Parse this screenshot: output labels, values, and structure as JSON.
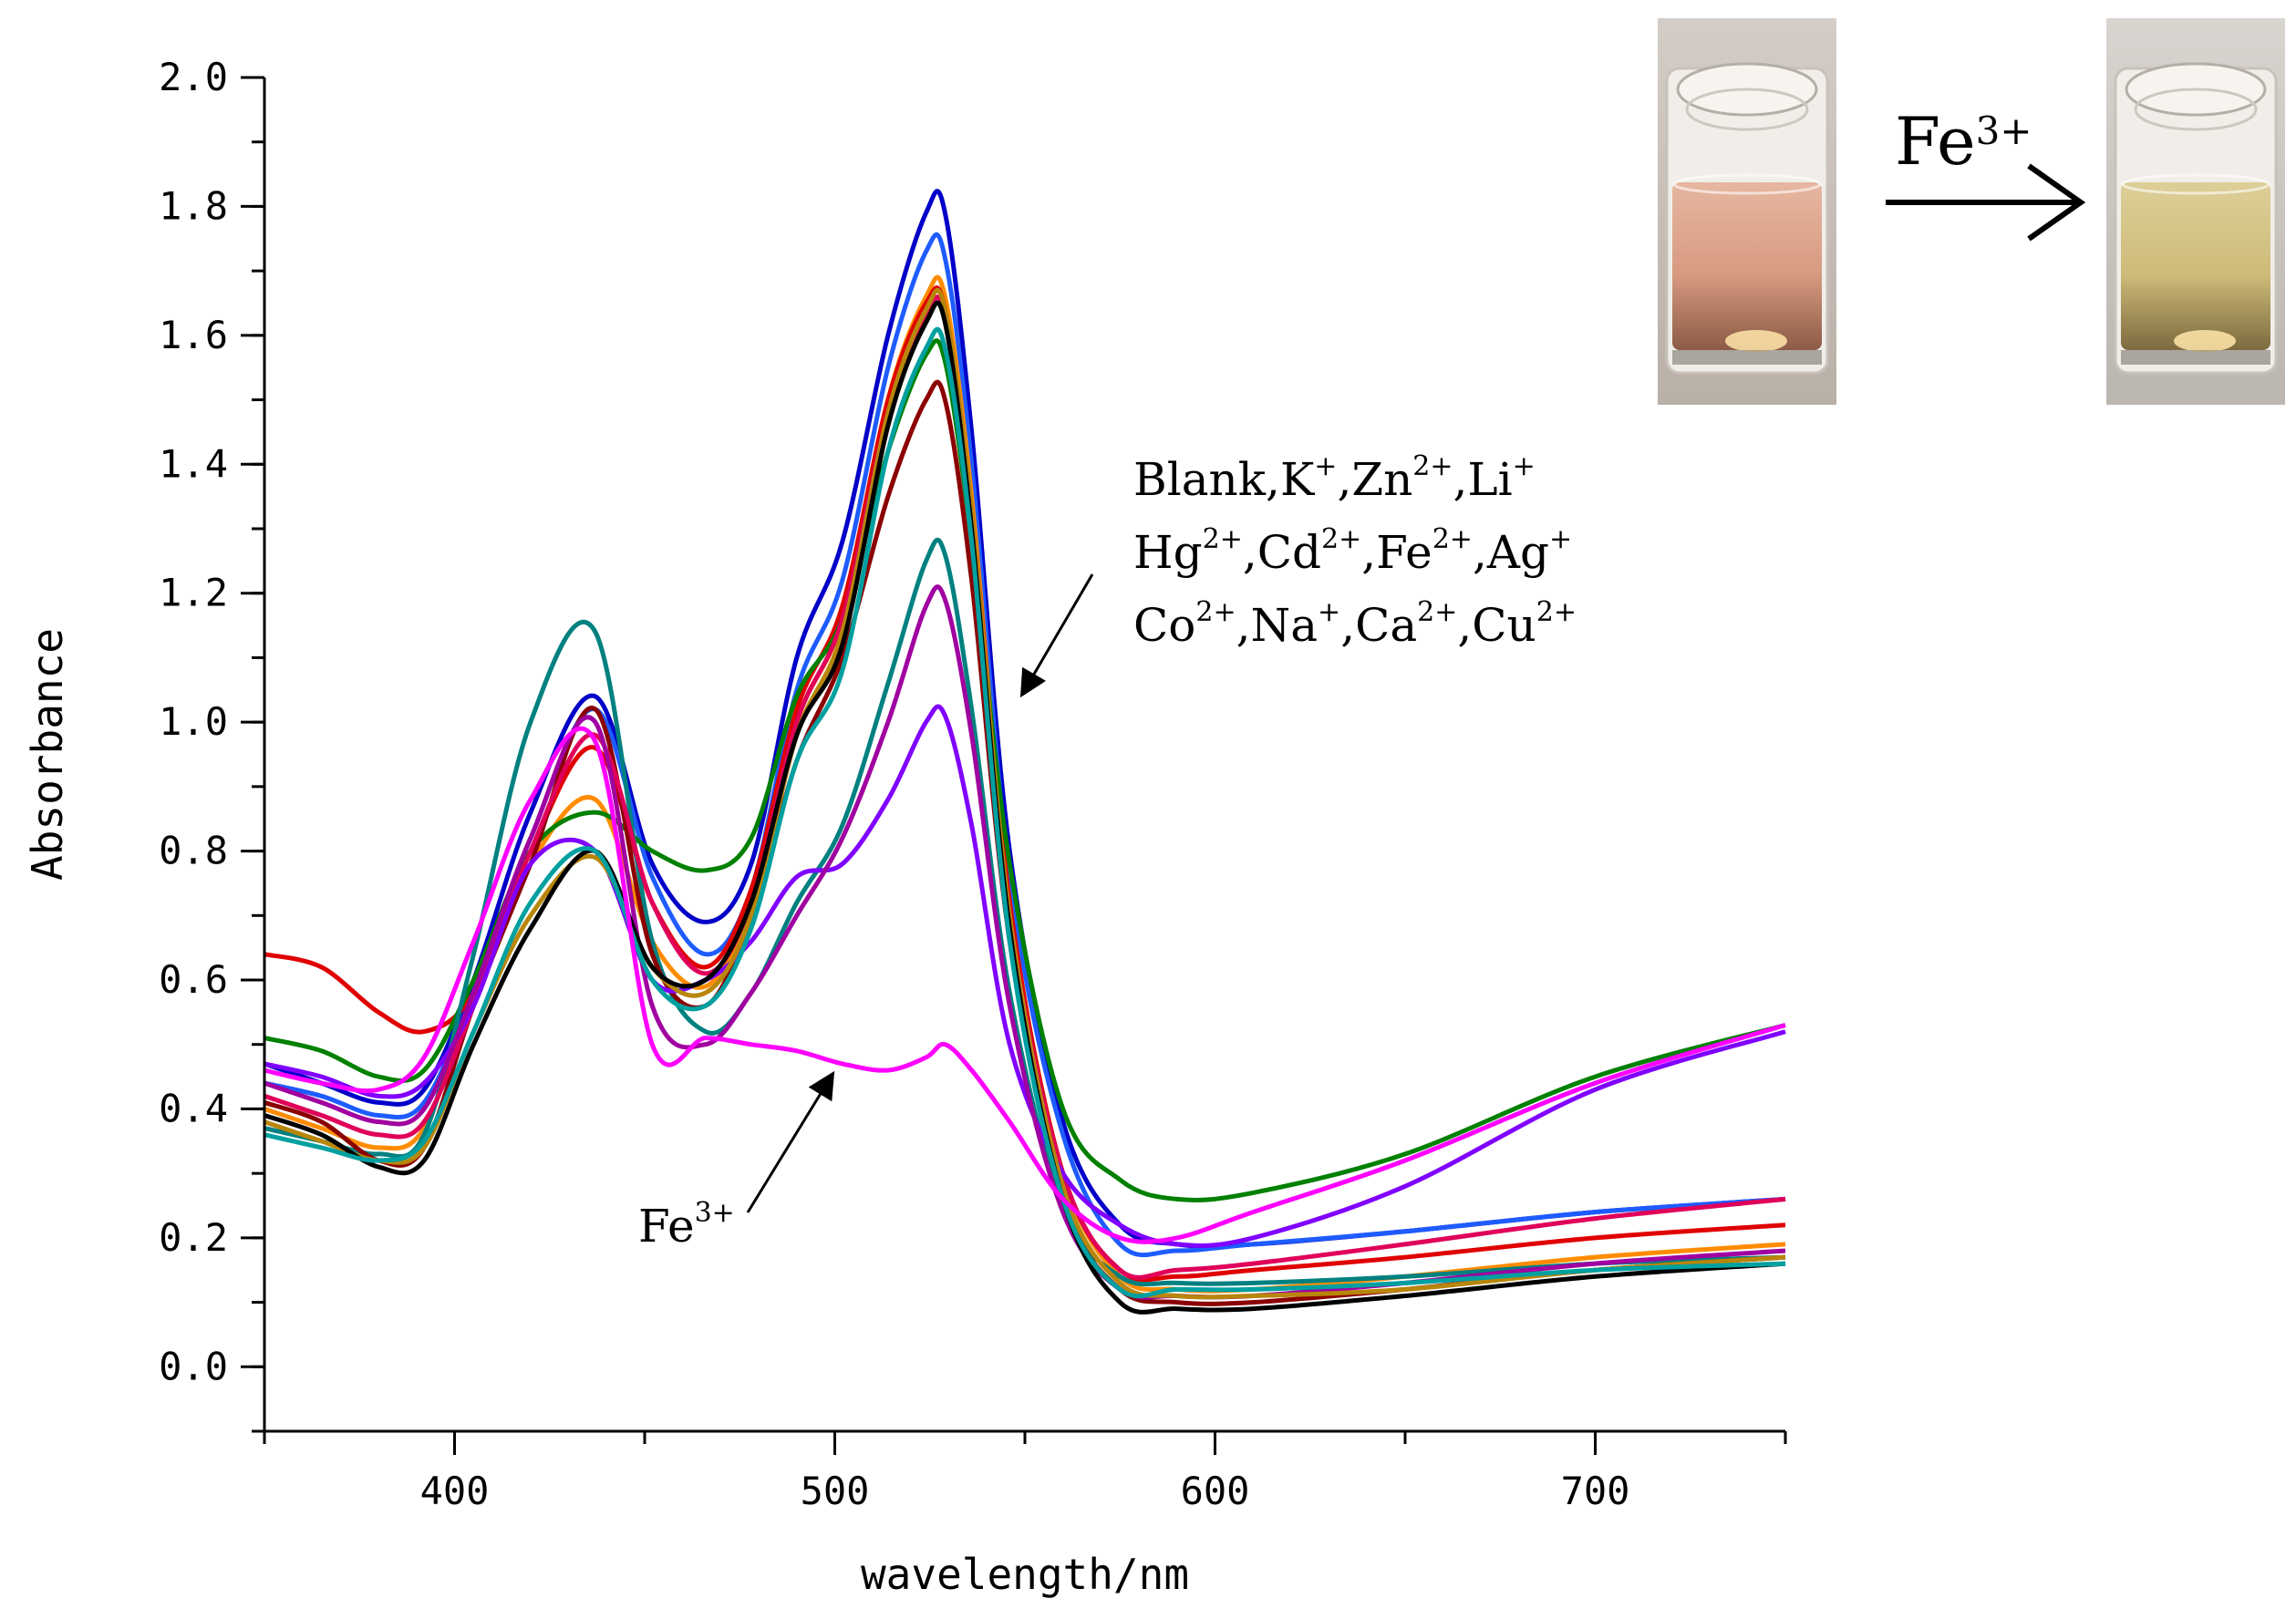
{
  "chart_data": {
    "type": "line",
    "xlabel": "wavelength/nm",
    "ylabel": "Absorbance",
    "xlim": [
      350,
      750
    ],
    "ylim": [
      -0.1,
      2.0
    ],
    "x_ticks": [
      400,
      500,
      600,
      700
    ],
    "y_ticks": [
      0.0,
      0.2,
      0.4,
      0.6,
      0.8,
      1.0,
      1.2,
      1.4,
      1.6,
      1.8,
      2.0
    ],
    "x_tick_labels": [
      "400",
      "500",
      "600",
      "700"
    ],
    "y_tick_labels": [
      "0.0",
      "0.2",
      "0.4",
      "0.6",
      "0.8",
      "1.0",
      "1.2",
      "1.4",
      "1.6",
      "1.8",
      "2.0"
    ],
    "grid": false,
    "x": [
      350,
      365,
      380,
      392,
      405,
      420,
      437,
      452,
      466,
      478,
      490,
      502,
      514,
      524,
      529,
      536,
      546,
      560,
      575,
      590,
      610,
      650,
      700,
      750
    ],
    "series": [
      {
        "color": "#0000c8",
        "values": [
          0.47,
          0.44,
          0.41,
          0.43,
          0.6,
          0.86,
          1.04,
          0.78,
          0.69,
          0.78,
          1.1,
          1.28,
          1.6,
          1.79,
          1.79,
          1.45,
          0.8,
          0.38,
          0.22,
          0.19,
          0.19,
          0.21,
          0.24,
          0.26
        ]
      },
      {
        "color": "#1e5cff",
        "values": [
          0.44,
          0.42,
          0.39,
          0.41,
          0.58,
          0.82,
          1.02,
          0.76,
          0.64,
          0.74,
          1.05,
          1.22,
          1.55,
          1.73,
          1.72,
          1.4,
          0.76,
          0.36,
          0.19,
          0.18,
          0.19,
          0.21,
          0.24,
          0.26
        ]
      },
      {
        "color": "#ff8c00",
        "values": [
          0.4,
          0.37,
          0.34,
          0.37,
          0.58,
          0.78,
          0.88,
          0.66,
          0.59,
          0.72,
          1.0,
          1.16,
          1.5,
          1.66,
          1.66,
          1.35,
          0.72,
          0.3,
          0.14,
          0.12,
          0.12,
          0.14,
          0.17,
          0.19
        ]
      },
      {
        "color": "#e00000",
        "values": [
          0.64,
          0.62,
          0.55,
          0.52,
          0.58,
          0.8,
          0.96,
          0.72,
          0.62,
          0.74,
          1.02,
          1.18,
          1.5,
          1.65,
          1.64,
          1.33,
          0.72,
          0.3,
          0.15,
          0.14,
          0.15,
          0.17,
          0.2,
          0.22
        ]
      },
      {
        "color": "#008000",
        "values": [
          0.51,
          0.49,
          0.45,
          0.46,
          0.6,
          0.8,
          0.86,
          0.8,
          0.77,
          0.82,
          1.04,
          1.16,
          1.42,
          1.57,
          1.56,
          1.28,
          0.78,
          0.4,
          0.29,
          0.26,
          0.27,
          0.33,
          0.45,
          0.53
        ]
      },
      {
        "color": "#008080",
        "values": [
          0.37,
          0.35,
          0.33,
          0.36,
          0.64,
          1.0,
          1.14,
          0.66,
          0.52,
          0.58,
          0.72,
          0.84,
          1.06,
          1.25,
          1.26,
          1.02,
          0.58,
          0.25,
          0.14,
          0.13,
          0.13,
          0.14,
          0.16,
          0.17
        ]
      },
      {
        "color": "#8b0000",
        "values": [
          0.41,
          0.38,
          0.32,
          0.34,
          0.56,
          0.78,
          1.02,
          0.64,
          0.56,
          0.7,
          0.94,
          1.1,
          1.35,
          1.5,
          1.5,
          1.22,
          0.66,
          0.26,
          0.12,
          0.1,
          0.1,
          0.12,
          0.15,
          0.17
        ]
      },
      {
        "color": "#e0005a",
        "values": [
          0.42,
          0.39,
          0.36,
          0.38,
          0.56,
          0.8,
          0.98,
          0.72,
          0.61,
          0.72,
          1.0,
          1.16,
          1.48,
          1.63,
          1.63,
          1.32,
          0.7,
          0.3,
          0.15,
          0.15,
          0.16,
          0.19,
          0.23,
          0.26
        ]
      },
      {
        "color": "#8000ff",
        "values": [
          0.47,
          0.45,
          0.42,
          0.44,
          0.56,
          0.78,
          0.8,
          0.6,
          0.6,
          0.66,
          0.76,
          0.78,
          0.88,
          1.0,
          1.01,
          0.84,
          0.5,
          0.3,
          0.22,
          0.19,
          0.2,
          0.28,
          0.43,
          0.52
        ]
      },
      {
        "color": "#a000a0",
        "values": [
          0.44,
          0.41,
          0.38,
          0.4,
          0.58,
          0.82,
          1.0,
          0.56,
          0.5,
          0.58,
          0.7,
          0.82,
          1.0,
          1.18,
          1.19,
          0.98,
          0.56,
          0.24,
          0.12,
          0.11,
          0.11,
          0.13,
          0.16,
          0.18
        ]
      },
      {
        "color": "#b8860b",
        "values": [
          0.38,
          0.35,
          0.32,
          0.34,
          0.52,
          0.7,
          0.79,
          0.62,
          0.58,
          0.7,
          0.98,
          1.14,
          1.48,
          1.64,
          1.64,
          1.33,
          0.7,
          0.28,
          0.13,
          0.11,
          0.11,
          0.12,
          0.15,
          0.17
        ]
      },
      {
        "color": "#000000",
        "values": [
          0.39,
          0.36,
          0.31,
          0.32,
          0.5,
          0.68,
          0.8,
          0.62,
          0.6,
          0.72,
          0.98,
          1.12,
          1.46,
          1.62,
          1.62,
          1.3,
          0.68,
          0.26,
          0.1,
          0.09,
          0.09,
          0.11,
          0.14,
          0.16
        ]
      },
      {
        "color": "#00a0a0",
        "values": [
          0.36,
          0.34,
          0.32,
          0.35,
          0.52,
          0.72,
          0.8,
          0.6,
          0.56,
          0.68,
          0.94,
          1.08,
          1.42,
          1.58,
          1.58,
          1.28,
          0.66,
          0.26,
          0.12,
          0.12,
          0.12,
          0.13,
          0.15,
          0.16
        ]
      },
      {
        "color": "#ff00ff",
        "values": [
          0.46,
          0.44,
          0.43,
          0.48,
          0.66,
          0.88,
          0.97,
          0.5,
          0.51,
          0.5,
          0.49,
          0.47,
          0.46,
          0.48,
          0.5,
          0.46,
          0.38,
          0.26,
          0.2,
          0.2,
          0.24,
          0.32,
          0.44,
          0.53
        ]
      }
    ],
    "annotations": [
      {
        "lines": [
          [
            {
              "t": "Blank,K",
              "s": ""
            },
            {
              "t": "+",
              "s": "sup"
            },
            {
              "t": ",Zn",
              "s": ""
            },
            {
              "t": "2+",
              "s": "sup"
            },
            {
              "t": ",Li",
              "s": ""
            },
            {
              "t": "+",
              "s": "sup"
            }
          ],
          [
            {
              "t": "Hg",
              "s": ""
            },
            {
              "t": "2+",
              "s": "sup"
            },
            {
              "t": ",Cd",
              "s": ""
            },
            {
              "t": "2+",
              "s": "sup"
            },
            {
              "t": ",Fe",
              "s": ""
            },
            {
              "t": "2+",
              "s": "sup"
            },
            {
              "t": ",Ag",
              "s": ""
            },
            {
              "t": "+",
              "s": "sup"
            }
          ],
          [
            {
              "t": "Co",
              "s": ""
            },
            {
              "t": "2+",
              "s": "sup"
            },
            {
              "t": ",Na",
              "s": ""
            },
            {
              "t": "+",
              "s": "sup"
            },
            {
              "t": ",Ca",
              "s": ""
            },
            {
              "t": "2+",
              "s": "sup"
            },
            {
              "t": ",Cu",
              "s": ""
            },
            {
              "t": "2+",
              "s": "sup"
            }
          ]
        ]
      },
      {
        "lines": [
          [
            {
              "t": "Fe",
              "s": ""
            },
            {
              "t": "3+",
              "s": "sup"
            }
          ]
        ]
      }
    ],
    "vial_label": [
      {
        "t": "Fe",
        "s": ""
      },
      {
        "t": "3+",
        "s": "sup"
      }
    ]
  }
}
